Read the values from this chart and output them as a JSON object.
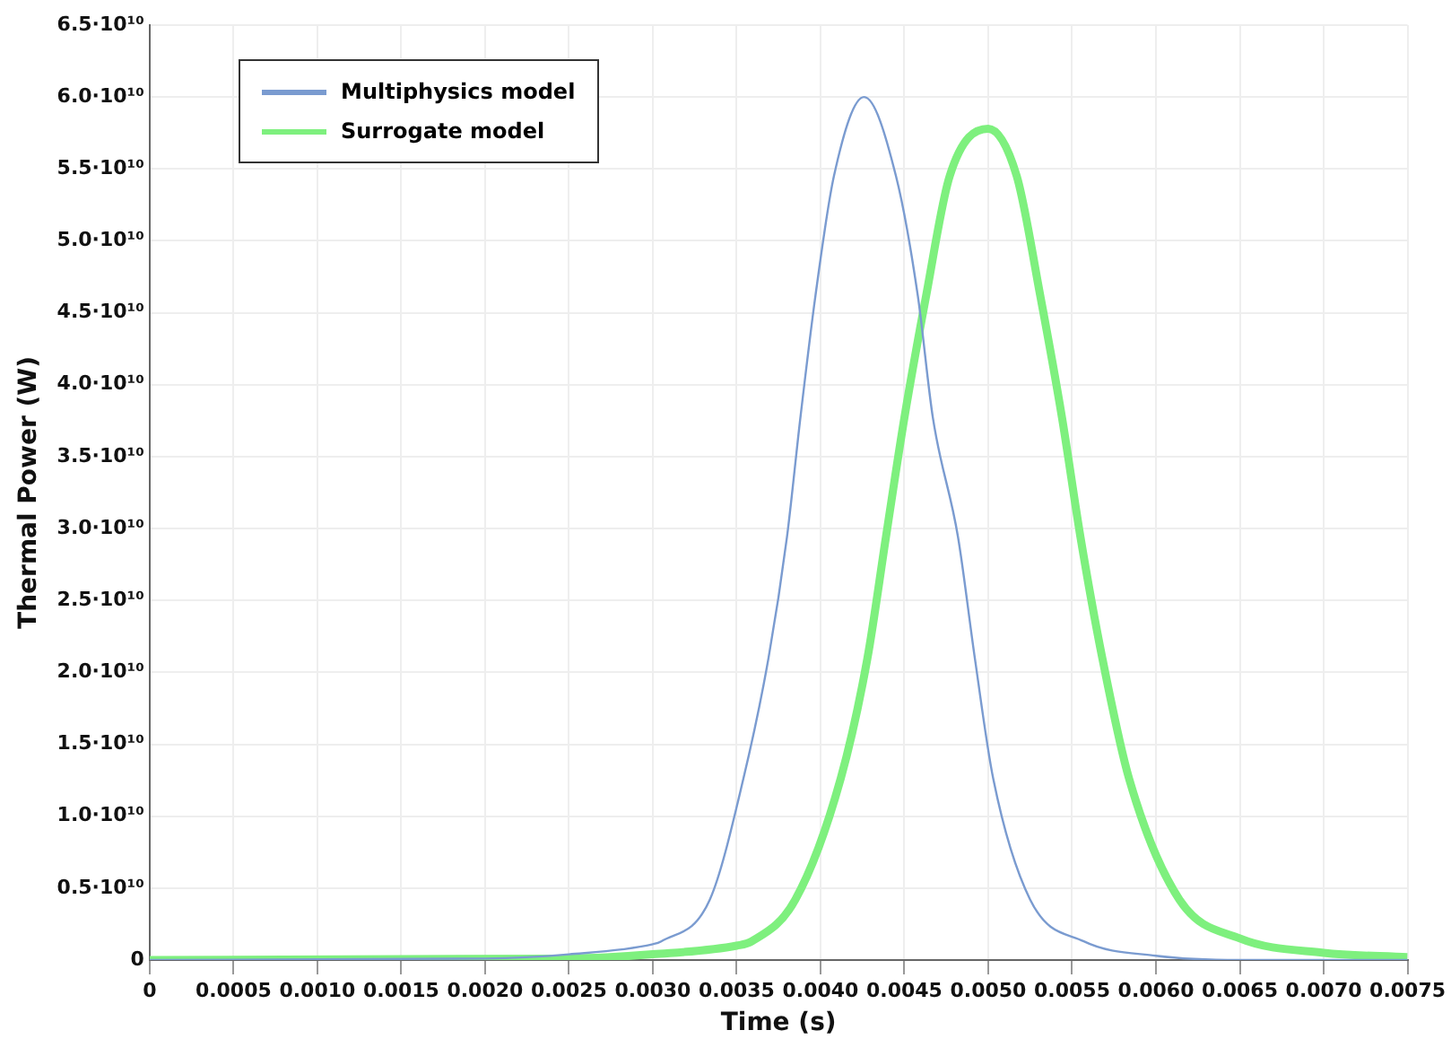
{
  "chart_data": {
    "type": "line",
    "xlabel": "Time (s)",
    "ylabel": "Thermal Power (W)",
    "xlim": [
      0,
      0.0075
    ],
    "xticks": [
      0,
      {
        "value": 0.0005,
        "label": "0.0005"
      },
      {
        "value": 0.001,
        "label": "0.0010"
      },
      {
        "value": 0.0015,
        "label": "0.0015"
      },
      {
        "value": 0.002,
        "label": "0.0020"
      },
      {
        "value": 0.0025,
        "label": "0.0025"
      },
      {
        "value": 0.003,
        "label": "0.0030"
      },
      {
        "value": 0.0035,
        "label": "0.0035"
      },
      {
        "value": 0.004,
        "label": "0.0040"
      },
      {
        "value": 0.0045,
        "label": "0.0045"
      },
      {
        "value": 0.005,
        "label": "0.0050"
      },
      {
        "value": 0.0055,
        "label": "0.0055"
      },
      {
        "value": 0.006,
        "label": "0.0060"
      },
      {
        "value": 0.0065,
        "label": "0.0065"
      },
      {
        "value": 0.007,
        "label": "0.0070"
      },
      {
        "value": 0.0075,
        "label": "0.0075"
      }
    ],
    "ylim": [
      0,
      65000000000.0
    ],
    "yticks": [
      0,
      {
        "value": 5000000000.0,
        "label": "0.5·10¹⁰"
      },
      {
        "value": 10000000000.0,
        "label": "1.0·10¹⁰"
      },
      {
        "value": 15000000000.0,
        "label": "1.5·10¹⁰"
      },
      {
        "value": 20000000000.0,
        "label": "2.0·10¹⁰"
      },
      {
        "value": 25000000000.0,
        "label": "2.5·10¹⁰"
      },
      {
        "value": 30000000000.0,
        "label": "3.0·10¹⁰"
      },
      {
        "value": 35000000000.0,
        "label": "3.5·10¹⁰"
      },
      {
        "value": 40000000000.0,
        "label": "4.0·10¹⁰"
      },
      {
        "value": 45000000000.0,
        "label": "4.5·10¹⁰"
      },
      {
        "value": 50000000000.0,
        "label": "5.0·10¹⁰"
      },
      {
        "value": 55000000000.0,
        "label": "5.5·10¹⁰"
      },
      {
        "value": 60000000000.0,
        "label": "6.0·10¹⁰"
      },
      {
        "value": 65000000000.0,
        "label": "6.5·10¹⁰"
      }
    ],
    "grid": true,
    "legend": "top left",
    "marker": "none",
    "line_style": "solid",
    "series": [
      {
        "name": "Multiphysics model",
        "color": "#7a9bd0",
        "x": [
          0,
          0.002,
          0.0025,
          0.003,
          0.00305,
          0.00334,
          0.00354,
          0.00369,
          0.0038,
          0.00388,
          0.00397,
          0.00408,
          0.00426,
          0.00445,
          0.00458,
          0.00467,
          0.00482,
          0.00492,
          0.00503,
          0.00525,
          0.00557,
          0.006,
          0.0065,
          0.0075
        ],
        "values": [
          0,
          100000000.0,
          400000000.0,
          1100000000.0,
          1300000000.0,
          4200000000.0,
          12600000000.0,
          21000000000.0,
          29400000000.0,
          37700000000.0,
          46200000000.0,
          54500000000.0,
          60000000000.0,
          54500000000.0,
          46200000000.0,
          37700000000.0,
          29400000000.0,
          21000000000.0,
          12600000000.0,
          4200000000.0,
          1300000000.0,
          300000000.0,
          0,
          0
        ]
      },
      {
        "name": "Surrogate model",
        "color": "#7ef07e",
        "x": [
          0,
          0.0025,
          0.003,
          0.0035,
          0.00359,
          0.00385,
          0.00412,
          0.00428,
          0.00439,
          0.0045,
          0.00463,
          0.00477,
          0.005,
          0.00517,
          0.00531,
          0.00544,
          0.00555,
          0.00568,
          0.00584,
          0.00614,
          0.0065,
          0.007,
          0.0075
        ],
        "values": [
          0,
          100000000.0,
          400000000.0,
          1000000000.0,
          1300000000.0,
          4200000000.0,
          12600000000.0,
          21000000000.0,
          29400000000.0,
          37700000000.0,
          46200000000.0,
          54500000000.0,
          57800000000.0,
          54500000000.0,
          46200000000.0,
          37700000000.0,
          29400000000.0,
          21000000000.0,
          12600000000.0,
          4200000000.0,
          1500000000.0,
          500000000.0,
          200000000.0
        ]
      }
    ]
  }
}
